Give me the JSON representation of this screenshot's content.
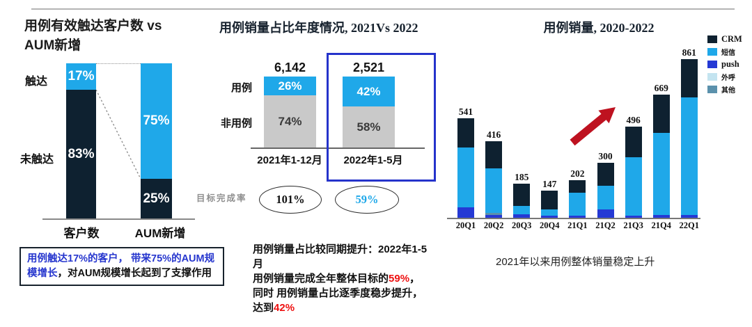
{
  "left_chart": {
    "title_line1": "用例有效触达客户数 vs",
    "title_line2": "AUM新增",
    "row_labels": {
      "top": "触达",
      "bottom": "未触达"
    },
    "bars": [
      {
        "label": "客户数",
        "touched_pct": "17%",
        "untouched_pct": "83%"
      },
      {
        "label": "AUM新增",
        "touched_pct": "75%",
        "untouched_pct": "25%"
      }
    ],
    "note": {
      "highlight": "用例触达17%的客户， 带来75%的AUM规模增长",
      "rest": "，对AUM规模增长起到了支撑作用"
    }
  },
  "middle_chart": {
    "title": "用例销量占比年度情况, 2021Vs 2022",
    "row_labels": {
      "top": "用例",
      "bottom": "非用例"
    },
    "bars": [
      {
        "total": "6,142",
        "case_pct": "26%",
        "non_case_pct": "74%",
        "period": "2021年1-12月",
        "target_rate": "101%"
      },
      {
        "total": "2,521",
        "case_pct": "42%",
        "non_case_pct": "58%",
        "period": "2022年1-5月",
        "target_rate": "59%"
      }
    ],
    "target_label": "目标完成率",
    "note": {
      "line1": "用例销量占比较同期提升：2022年1-5",
      "line2": "月",
      "line3_pre": "用例销量完成全年整体目标的",
      "line3_red": "59%",
      "line3_post": "，",
      "line4": "同时 用例销量占比逐季度稳步提升，",
      "line5_pre": "达到",
      "line5_red": "42%"
    }
  },
  "right_chart": {
    "title": "用例销量, 2020-2022",
    "caption": "2021年以来用例整体销量稳定上升",
    "legend": [
      {
        "name": "CRM",
        "color": "#0E2130"
      },
      {
        "name": "短信",
        "color": "#1FA8E9"
      },
      {
        "name": "push",
        "color": "#2539D4"
      },
      {
        "name": "外呼",
        "color": "#C4E4F0"
      },
      {
        "name": "其他",
        "color": "#5B91AC"
      }
    ],
    "annotation_arrow_color": "#BE1220"
  },
  "colors": {
    "dark_navy": "#0E2130",
    "light_blue": "#1FA8E9",
    "push_blue": "#2539D4",
    "pale_blue": "#C4E4F0",
    "steel_blue": "#5B91AC",
    "gray_segment": "#C9C9C9",
    "highlight_border": "#2533CB",
    "note_blue": "#2636CE",
    "red_text": "#EE1111",
    "arrow_red": "#BE1220"
  },
  "chart_data": [
    {
      "type": "bar",
      "stacked": true,
      "unit": "percent",
      "title": "用例有效触达客户数 vs AUM新增",
      "categories": [
        "客户数",
        "AUM新增"
      ],
      "series": [
        {
          "name": "触达",
          "values": [
            17,
            75
          ]
        },
        {
          "name": "未触达",
          "values": [
            83,
            25
          ]
        }
      ],
      "ylim": [
        0,
        100
      ],
      "grid": false,
      "legend_position": "left-row-labels"
    },
    {
      "type": "bar",
      "stacked": true,
      "unit": "percent",
      "title": "用例销量占比年度情况, 2021Vs 2022",
      "categories": [
        "2021年1-12月",
        "2022年1-5月"
      ],
      "totals": [
        6142,
        2521
      ],
      "series": [
        {
          "name": "用例",
          "values": [
            26,
            42
          ]
        },
        {
          "name": "非用例",
          "values": [
            74,
            58
          ]
        }
      ],
      "annotations": {
        "目标完成率": [
          101,
          59
        ]
      },
      "highlight_category": "2022年1-5月",
      "ylim": [
        0,
        100
      ],
      "grid": false
    },
    {
      "type": "bar",
      "stacked": true,
      "title": "用例销量, 2020-2022",
      "categories": [
        "20Q1",
        "20Q2",
        "20Q3",
        "20Q4",
        "21Q1",
        "21Q2",
        "21Q3",
        "21Q4",
        "22Q1"
      ],
      "totals": [
        541,
        416,
        185,
        147,
        202,
        300,
        496,
        669,
        861
      ],
      "series": [
        {
          "name": "CRM",
          "values": [
            160,
            148,
            120,
            102,
            68,
            126,
            166,
            208,
            210
          ],
          "estimated": true
        },
        {
          "name": "短信",
          "values": [
            325,
            242,
            46,
            34,
            121,
            129,
            319,
            446,
            636
          ],
          "estimated": true
        },
        {
          "name": "push",
          "values": [
            56,
            16,
            19,
            11,
            13,
            45,
            11,
            15,
            15
          ],
          "estimated": true
        },
        {
          "name": "外呼",
          "values": [
            0,
            0,
            0,
            0,
            0,
            0,
            0,
            0,
            0
          ],
          "estimated": true
        },
        {
          "name": "其他",
          "values": [
            0,
            10,
            0,
            0,
            0,
            0,
            0,
            0,
            0
          ],
          "estimated": true
        }
      ],
      "stack_order": [
        "push",
        "其他",
        "外呼",
        "短信",
        "CRM"
      ],
      "ylim": [
        0,
        900
      ],
      "grid": false,
      "legend_position": "right",
      "annotation": "red-up-arrow"
    }
  ]
}
